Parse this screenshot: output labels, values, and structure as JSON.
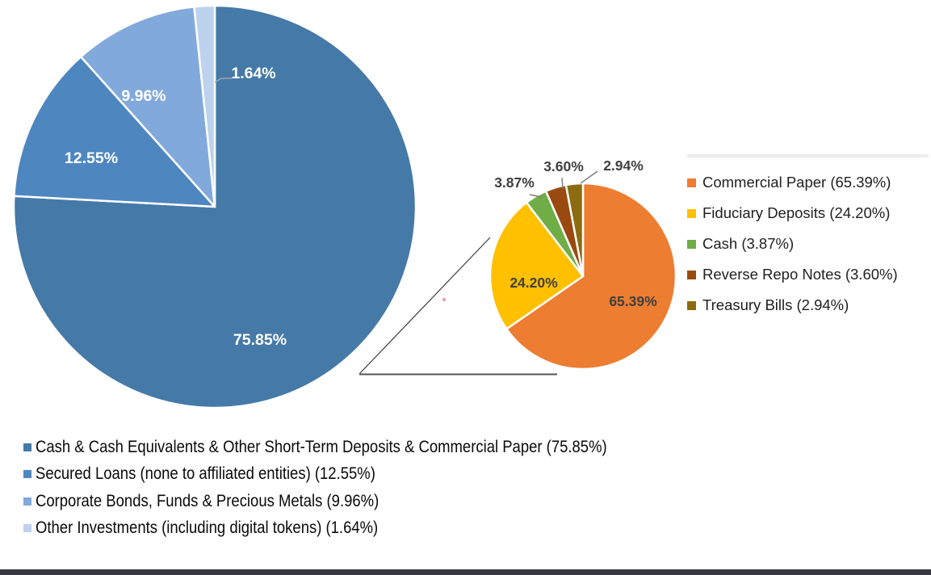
{
  "chart_data": {
    "type": "pie",
    "variant": "pie-of-pie",
    "title": "",
    "main_pie": {
      "slices": [
        {
          "name": "Cash & Cash Equivalents & Other Short-Term Deposits & Commercial Paper",
          "value": 75.85,
          "label": "75.85%",
          "color": "#4579A8"
        },
        {
          "name": "Secured Loans (none to affiliated entities)",
          "value": 12.55,
          "label": "12.55%",
          "color": "#4E86C0"
        },
        {
          "name": "Corporate Bonds, Funds & Precious Metals",
          "value": 9.96,
          "label": "9.96%",
          "color": "#82A9DB"
        },
        {
          "name": "Other Investments (including digital tokens)",
          "value": 1.64,
          "label": "1.64%",
          "color": "#BDD2EC"
        }
      ]
    },
    "breakout_pie": {
      "slices": [
        {
          "name": "Commercial Paper",
          "value": 65.39,
          "label": "65.39%",
          "color": "#ED7D31"
        },
        {
          "name": "Fiduciary Deposits",
          "value": 24.2,
          "label": "24.20%",
          "color": "#FFC000"
        },
        {
          "name": "Cash",
          "value": 3.87,
          "label": "3.87%",
          "color": "#70AD47"
        },
        {
          "name": "Reverse Repo Notes",
          "value": 3.6,
          "label": "3.60%",
          "color": "#9A4A0F"
        },
        {
          "name": "Treasury Bills",
          "value": 2.94,
          "label": "2.94%",
          "color": "#8C6B10"
        }
      ]
    },
    "legend_position": "right-and-bottom",
    "grid": false
  },
  "legend_right": {
    "items": [
      {
        "label": "Commercial Paper (65.39%)",
        "color": "#ED7D31"
      },
      {
        "label": "Fiduciary Deposits (24.20%)",
        "color": "#FFC000"
      },
      {
        "label": "Cash (3.87%)",
        "color": "#70AD47"
      },
      {
        "label": "Reverse Repo Notes (3.60%)",
        "color": "#9A4A0F"
      },
      {
        "label": "Treasury Bills (2.94%)",
        "color": "#8C6B10"
      }
    ]
  },
  "legend_bottom": {
    "items": [
      {
        "label": "Cash & Cash Equivalents & Other Short-Term Deposits & Commercial Paper (75.85%)",
        "color": "#4579A8"
      },
      {
        "label": "Secured Loans (none to affiliated entities) (12.55%)",
        "color": "#4E86C0"
      },
      {
        "label": "Corporate Bonds, Funds & Precious Metals (9.96%)",
        "color": "#82A9DB"
      },
      {
        "label": "Other Investments (including digital tokens) (1.64%)",
        "color": "#BDD2EC"
      }
    ]
  }
}
